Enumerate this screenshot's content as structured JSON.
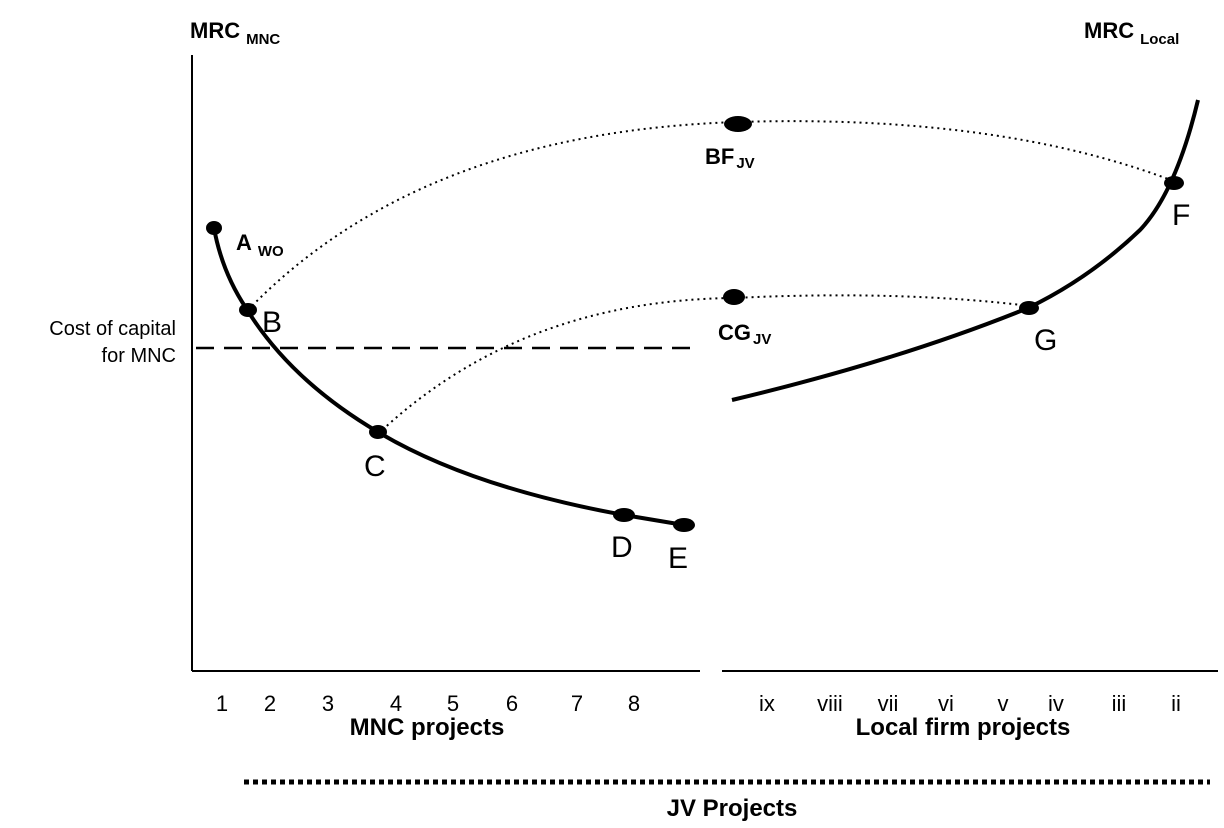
{
  "axes": {
    "left_title": "MRC",
    "left_sub": "MNC",
    "right_title": "MRC",
    "right_sub": "Local"
  },
  "cost_of_capital_label": [
    "Cost of capital",
    "for MNC"
  ],
  "points": {
    "A": {
      "main": "A",
      "sub": "WO"
    },
    "B": "B",
    "C": "C",
    "D": "D",
    "E": "E",
    "F": "F",
    "G": "G",
    "BF": {
      "main": "BF",
      "sub": "JV"
    },
    "CG": {
      "main": "CG",
      "sub": "JV"
    }
  },
  "mnc_ticks": [
    "1",
    "2",
    "3",
    "4",
    "5",
    "6",
    "7",
    "8"
  ],
  "local_ticks": [
    "ix",
    "viii",
    "vii",
    "vi",
    "v",
    "iv",
    "iii",
    "ii"
  ],
  "mnc_projects_label": "MNC projects",
  "local_projects_label": "Local firm projects",
  "jv_projects_label": "JV Projects"
}
